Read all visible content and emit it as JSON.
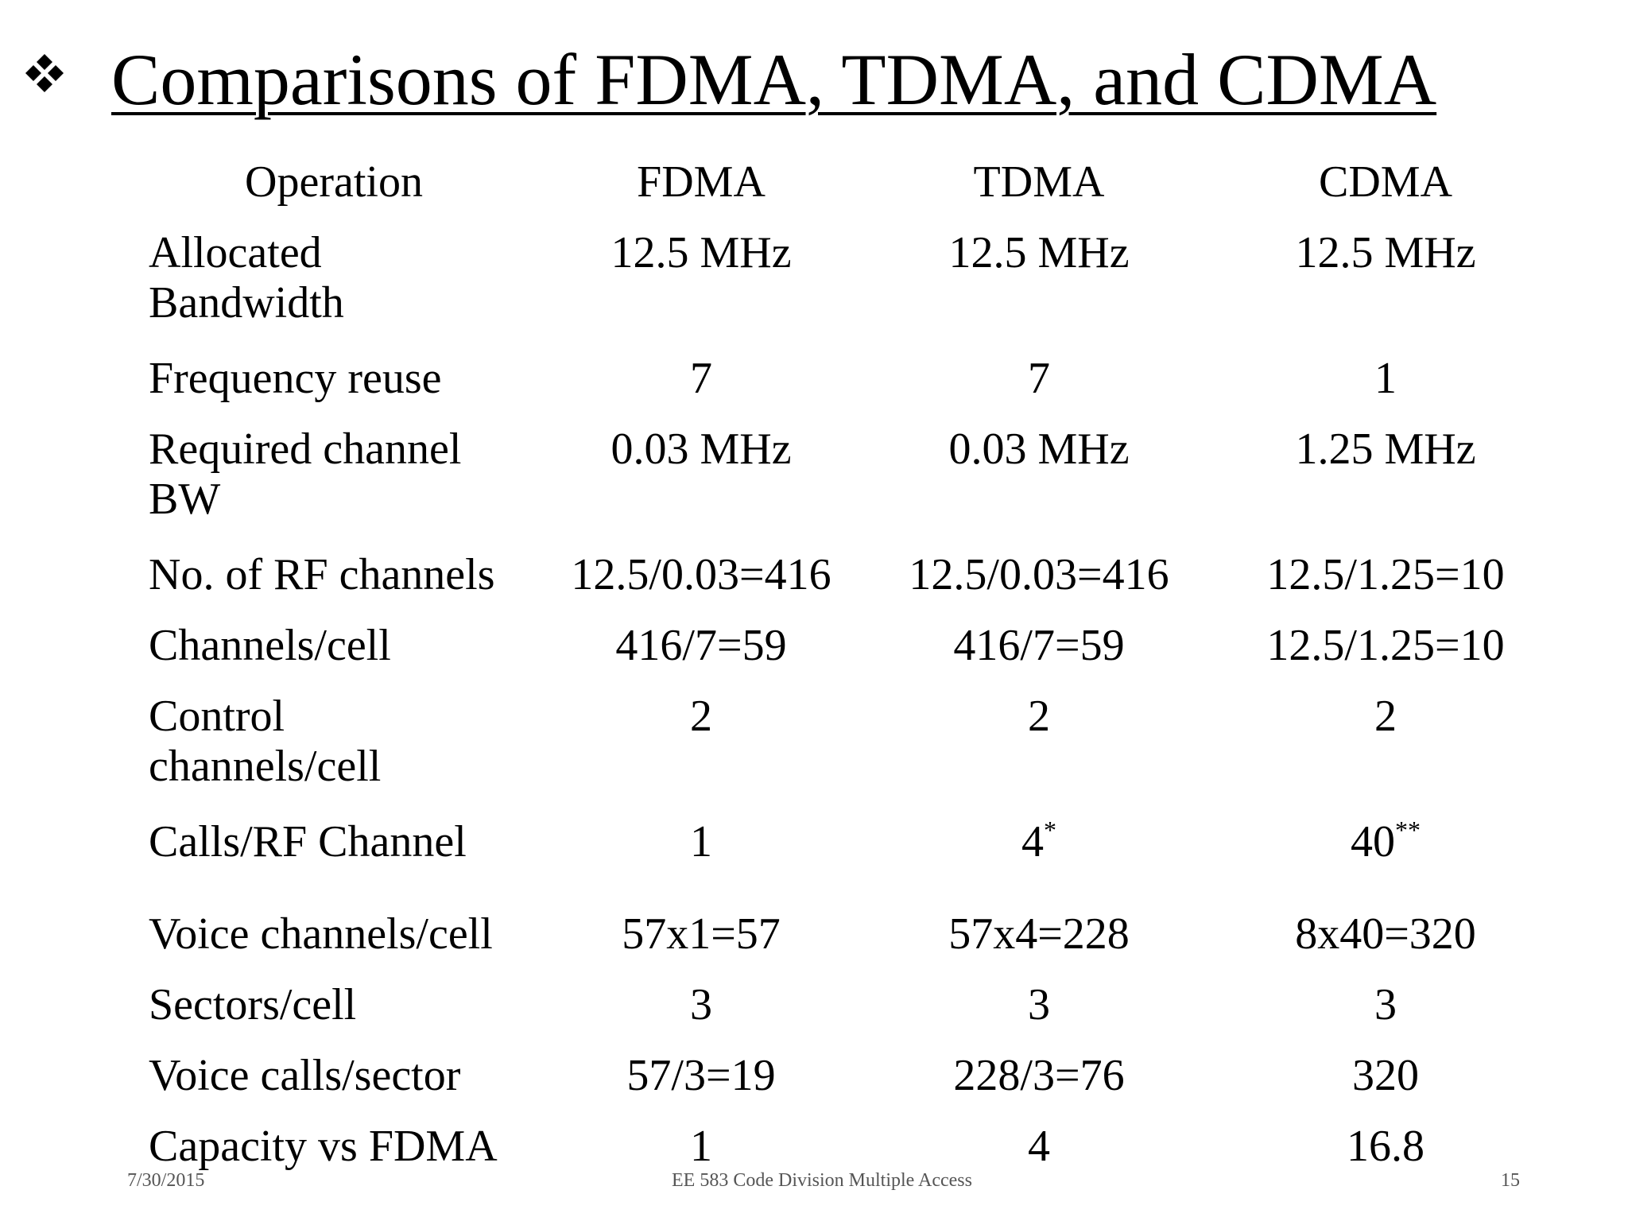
{
  "slide": {
    "title": "Comparisons of FDMA, TDMA, and CDMA"
  },
  "table": {
    "headers": [
      "Operation",
      "FDMA",
      "TDMA",
      "CDMA"
    ],
    "rows": [
      {
        "label": [
          "Allocated",
          "Bandwidth"
        ],
        "fdma": "12.5 MHz",
        "tdma": "12.5 MHz",
        "cdma": "12.5 MHz"
      },
      {
        "label": [
          "Frequency reuse"
        ],
        "fdma": "7",
        "tdma": "7",
        "cdma": "1"
      },
      {
        "label": [
          "Required channel",
          "BW"
        ],
        "fdma": "0.03 MHz",
        "tdma": "0.03 MHz",
        "cdma": "1.25 MHz"
      },
      {
        "label": [
          "No. of RF channels"
        ],
        "fdma": "12.5/0.03=416",
        "tdma": "12.5/0.03=416",
        "cdma": "12.5/1.25=10"
      },
      {
        "label": [
          "Channels/cell"
        ],
        "fdma": "416/7=59",
        "tdma": "416/7=59",
        "cdma": "12.5/1.25=10"
      },
      {
        "label": [
          "Control",
          "channels/cell"
        ],
        "fdma": "2",
        "tdma": "2",
        "cdma": "2"
      },
      {
        "label": [
          "Calls/RF Channel"
        ],
        "fdma": "1",
        "tdma": "4",
        "tdma_sup": "*",
        "cdma": "40",
        "cdma_sup": "**"
      },
      {
        "label": [
          "Voice channels/cell"
        ],
        "fdma": "57x1=57",
        "tdma": "57x4=228",
        "cdma": "8x40=320"
      },
      {
        "label": [
          "Sectors/cell"
        ],
        "fdma": "3",
        "tdma": "3",
        "cdma": "3"
      },
      {
        "label": [
          "Voice calls/sector"
        ],
        "fdma": "57/3=19",
        "tdma": "228/3=76",
        "cdma": "320"
      },
      {
        "label": [
          "Capacity vs FDMA"
        ],
        "fdma": "1",
        "tdma": "4",
        "cdma": "16.8"
      }
    ]
  },
  "footer": {
    "date": "7/30/2015",
    "course": "EE 583 Code Division Multiple Access",
    "page": "15"
  },
  "icons": {
    "bullet": "four-diamond-bullet-icon"
  }
}
